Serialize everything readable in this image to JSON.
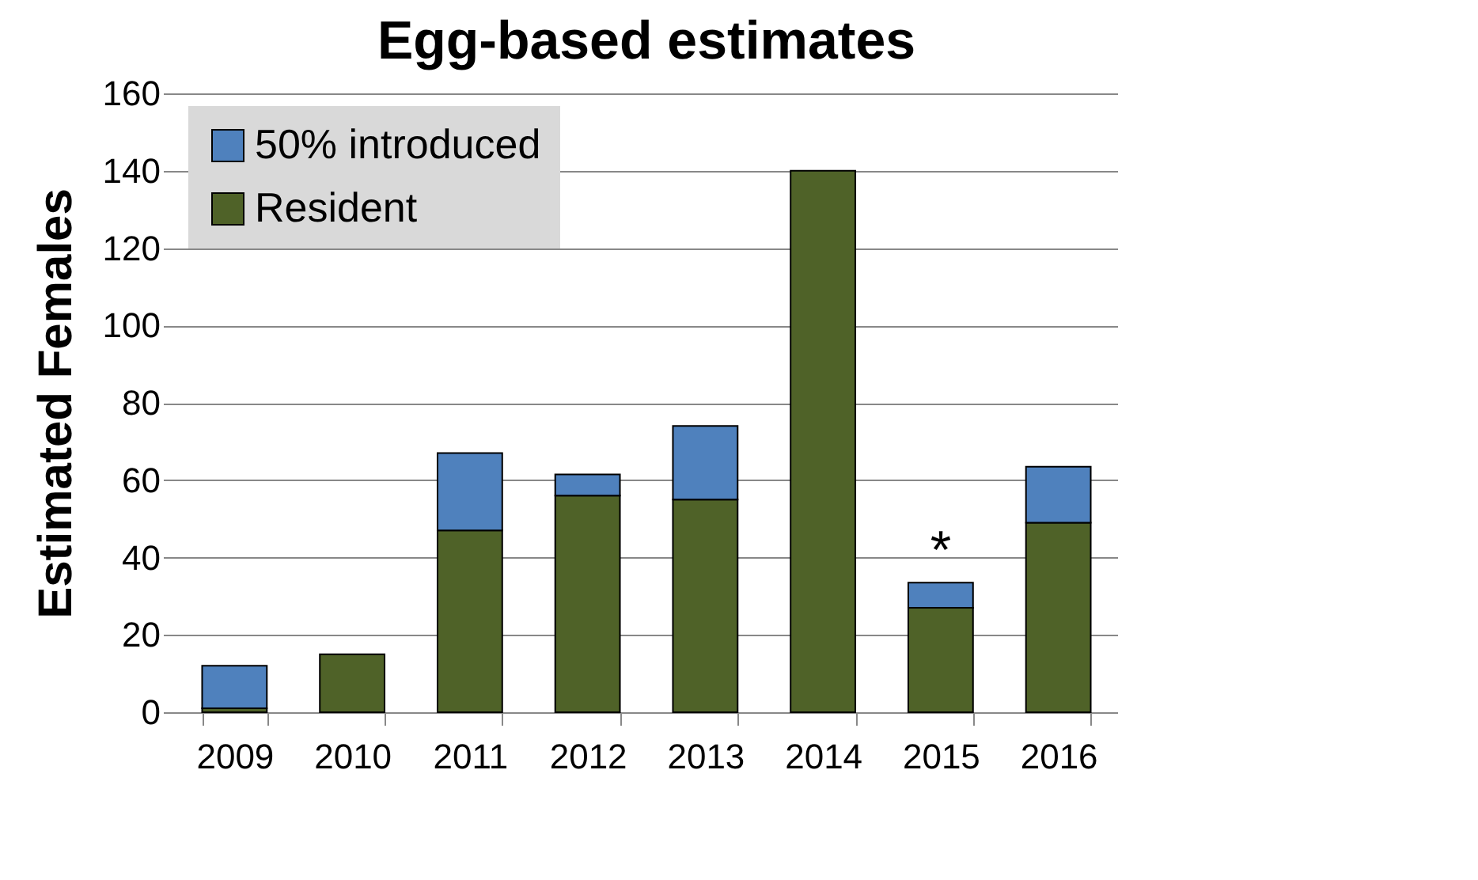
{
  "chart_data": {
    "type": "bar",
    "title": "Egg-based estimates",
    "ylabel": "Estimated Females",
    "categories": [
      "2009",
      "2010",
      "2011",
      "2012",
      "2013",
      "2014",
      "2015",
      "2016"
    ],
    "series": [
      {
        "name": "Resident",
        "color": "#4f6228",
        "values": [
          1,
          15,
          47,
          56,
          55,
          140,
          27,
          49
        ]
      },
      {
        "name": "50% introduced",
        "color": "#4f81bd",
        "values": [
          11,
          0,
          20,
          5.5,
          19,
          0,
          6.5,
          14.5
        ]
      }
    ],
    "stacked": true,
    "ylim": [
      0,
      160
    ],
    "yticks": [
      0,
      20,
      40,
      60,
      80,
      100,
      120,
      140,
      160
    ],
    "grid": "y",
    "legend": "top left",
    "annotations": [
      {
        "text": "*",
        "x": "2015",
        "y": 33.5
      }
    ]
  }
}
